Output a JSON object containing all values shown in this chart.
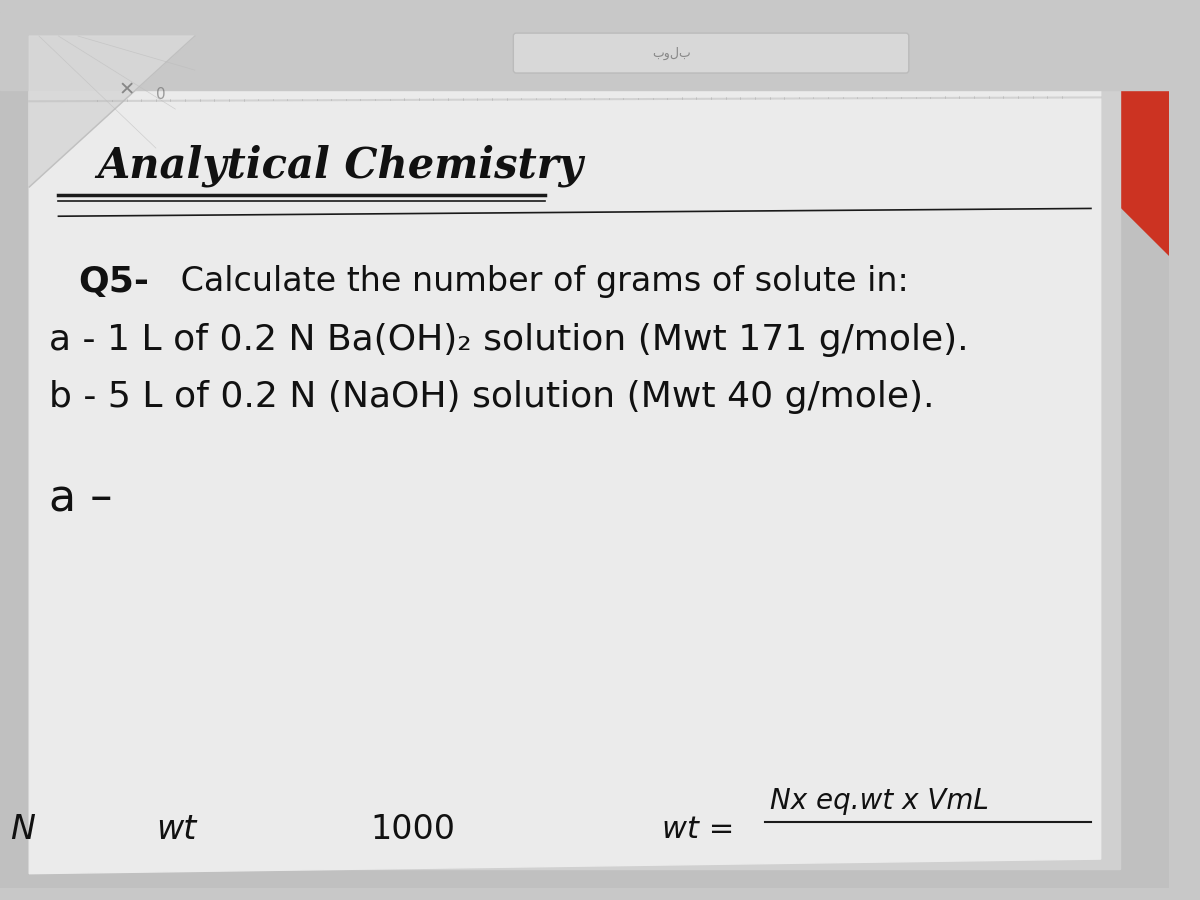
{
  "bg_color": "#c8c8c8",
  "page_color": "#e8e8e8",
  "title": "Analytical Chemistry",
  "question_bold": "Q5-",
  "question_rest": " Calculate the number of grams of solute in:",
  "part_a_text": "a - 1 L of 0.2 N Ba(OH)₂ solution (Mwt 171 g/mole).",
  "part_b_text": "b - 5 L of 0.2 N (NaOH) solution (Mwt 40 g/mole).",
  "answer_label": "a –",
  "bottom_wt": "wt",
  "bottom_1000": "1000",
  "bottom_wt_eq": "wt =",
  "bottom_formula": "Nx eq.wt x VmL",
  "line_color": "#1a1a1a",
  "text_color": "#111111",
  "shadow_color": "#aaaaaa",
  "top_bar_color": "#cccccc",
  "search_bar_color": "#e0e0e0",
  "red_corner_color": "#bb2222",
  "paper_shadow_color": "#b8b8b8"
}
